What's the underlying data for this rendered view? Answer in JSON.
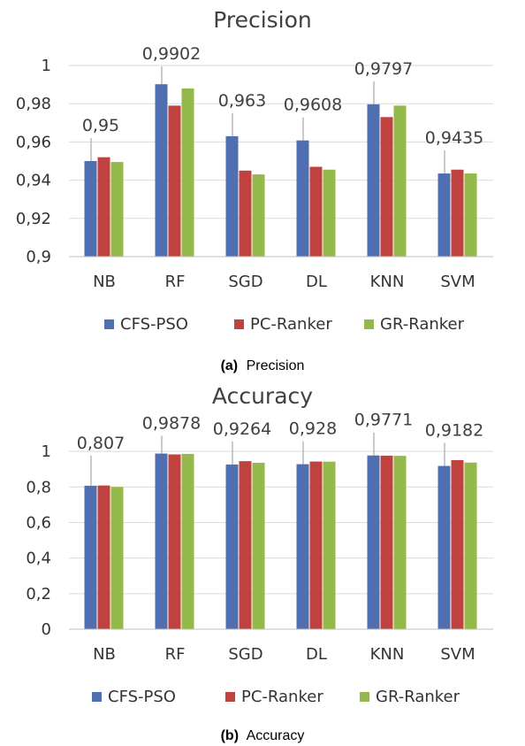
{
  "chart_data": [
    {
      "type": "bar",
      "title": "Precision",
      "caption_tag": "(a)",
      "caption_text": "Precision",
      "categories": [
        "NB",
        "RF",
        "SGD",
        "DL",
        "KNN",
        "SVM"
      ],
      "series": [
        {
          "name": "CFS-PSO",
          "color": "#4f6fb0",
          "values": [
            0.95,
            0.9902,
            0.963,
            0.9608,
            0.9797,
            0.9435
          ]
        },
        {
          "name": "PC-Ranker",
          "color": "#c0413d",
          "values": [
            0.952,
            0.979,
            0.945,
            0.947,
            0.973,
            0.9455
          ]
        },
        {
          "name": "GR-Ranker",
          "color": "#94b94a",
          "values": [
            0.9495,
            0.988,
            0.943,
            0.9455,
            0.979,
            0.9435
          ]
        }
      ],
      "ylim": [
        0.9,
        1.0
      ],
      "yticks": [
        "0,9",
        "0,92",
        "0,94",
        "0,96",
        "0,98",
        "1"
      ],
      "ytick_values": [
        0.9,
        0.92,
        0.94,
        0.96,
        0.98,
        1.0
      ],
      "data_labels": [
        "0,95",
        "0,9902",
        "0,963",
        "0,9608",
        "0,9797",
        "0,9435"
      ],
      "highlight_color": "#e8423b",
      "highlight_index": 1,
      "grid": true,
      "legend_position": "bottom"
    },
    {
      "type": "bar",
      "title": "Accuracy",
      "caption_tag": "(b)",
      "caption_text": "Accuracy",
      "categories": [
        "NB",
        "RF",
        "SGD",
        "DL",
        "KNN",
        "SVM"
      ],
      "series": [
        {
          "name": "CFS-PSO",
          "color": "#4f6fb0",
          "values": [
            0.807,
            0.9878,
            0.9264,
            0.928,
            0.9771,
            0.9182
          ]
        },
        {
          "name": "PC-Ranker",
          "color": "#c0413d",
          "values": [
            0.808,
            0.983,
            0.945,
            0.943,
            0.976,
            0.951
          ]
        },
        {
          "name": "GR-Ranker",
          "color": "#94b94a",
          "values": [
            0.8,
            0.986,
            0.936,
            0.942,
            0.975,
            0.937
          ]
        }
      ],
      "ylim": [
        0,
        1.1
      ],
      "yticks": [
        "0",
        "0,2",
        "0,4",
        "0,6",
        "0,8",
        "1"
      ],
      "ytick_values": [
        0,
        0.2,
        0.4,
        0.6,
        0.8,
        1.0
      ],
      "data_labels": [
        "0,807",
        "0,9878",
        "0,9264",
        "0,928",
        "0,9771",
        "0,9182"
      ],
      "highlight_color": "#e8423b",
      "highlight_index": 1,
      "grid": true,
      "legend_position": "bottom"
    }
  ]
}
